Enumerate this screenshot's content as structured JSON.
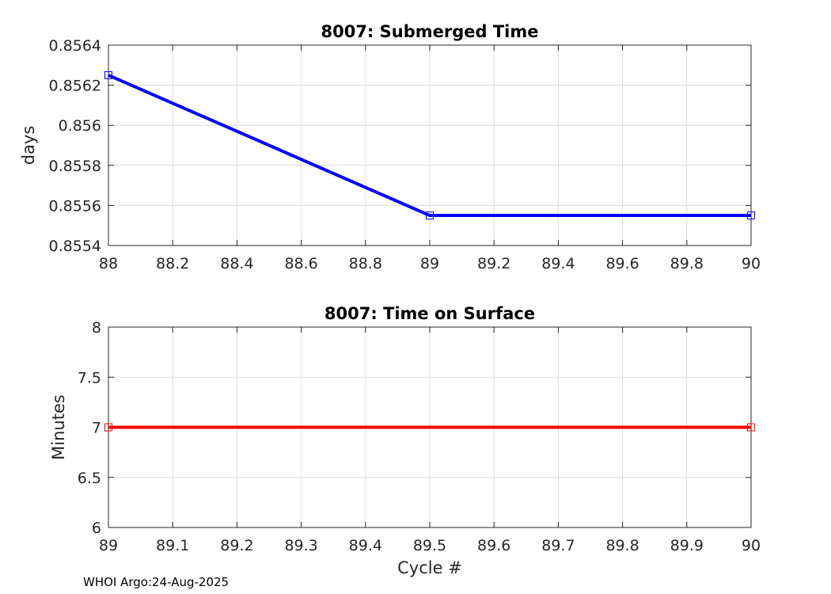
{
  "chart_data": [
    {
      "type": "line",
      "title": "8007: Submerged Time",
      "xlabel": "",
      "ylabel": "days",
      "xlim": [
        88,
        90
      ],
      "ylim": [
        0.8554,
        0.8564
      ],
      "xticks": [
        88,
        88.2,
        88.4,
        88.6,
        88.8,
        89,
        89.2,
        89.4,
        89.6,
        89.8,
        90
      ],
      "xtick_labels": [
        "88",
        "88.2",
        "88.4",
        "88.6",
        "88.8",
        "89",
        "89.2",
        "89.4",
        "89.6",
        "89.8",
        "90"
      ],
      "yticks": [
        0.8554,
        0.8556,
        0.8558,
        0.856,
        0.8562,
        0.8564
      ],
      "ytick_labels": [
        "0.8554",
        "0.8556",
        "0.8558",
        "0.856",
        "0.8562",
        "0.8564"
      ],
      "grid": true,
      "series": [
        {
          "name": "Submerged Time",
          "color": "#0000ff",
          "marker": "square",
          "x": [
            88,
            89,
            90
          ],
          "y": [
            0.85625,
            0.85555,
            0.85555
          ]
        }
      ]
    },
    {
      "type": "line",
      "title": "8007: Time on Surface",
      "xlabel": "Cycle #",
      "ylabel": "Minutes",
      "xlim": [
        89,
        90
      ],
      "ylim": [
        6,
        8
      ],
      "xticks": [
        89,
        89.1,
        89.2,
        89.3,
        89.4,
        89.5,
        89.6,
        89.7,
        89.8,
        89.9,
        90
      ],
      "xtick_labels": [
        "89",
        "89.1",
        "89.2",
        "89.3",
        "89.4",
        "89.5",
        "89.6",
        "89.7",
        "89.8",
        "89.9",
        "90"
      ],
      "yticks": [
        6,
        6.5,
        7,
        7.5,
        8
      ],
      "ytick_labels": [
        "6",
        "6.5",
        "7",
        "7.5",
        "8"
      ],
      "grid": true,
      "series": [
        {
          "name": "Time on Surface",
          "color": "#ff0000",
          "marker": "square",
          "x": [
            89,
            90
          ],
          "y": [
            7,
            7
          ]
        }
      ]
    }
  ],
  "footer": {
    "text": "WHOI Argo:24-Aug-2025"
  }
}
